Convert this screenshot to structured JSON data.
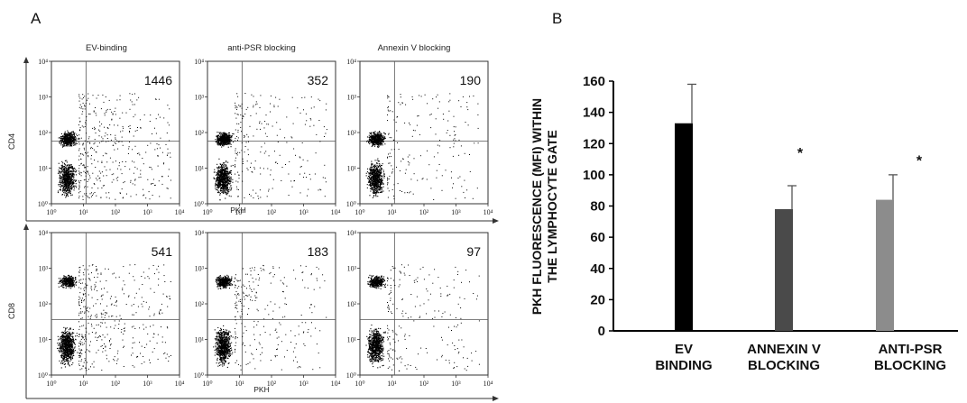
{
  "panel_a": {
    "letter": "A",
    "columns": [
      "EV-binding",
      "anti-PSR blocking",
      "Annexin V blocking"
    ],
    "rows": [
      {
        "label": "CD4",
        "counts": [
          "1446",
          "352",
          "190"
        ]
      },
      {
        "label": "CD8",
        "counts": [
          "541",
          "183",
          "97"
        ]
      }
    ],
    "x_axis_label": "PKH",
    "tick_labels": [
      "10⁰",
      "10¹",
      "10²",
      "10³",
      "10⁴"
    ]
  },
  "panel_b": {
    "letter": "B"
  },
  "chart_data": [
    {
      "type": "scatter",
      "panel": "A",
      "description_of_marks": "flow cytometry dot plots, 2 rows x 3 columns",
      "xlabel": "PKH",
      "x_scale": "log",
      "xlim": [
        1,
        10000
      ],
      "ylim": [
        1,
        10000
      ],
      "rows": [
        {
          "ylabel": "CD4",
          "counts": [
            1446,
            352,
            190
          ]
        },
        {
          "ylabel": "CD8",
          "counts": [
            541,
            183,
            97
          ]
        }
      ],
      "columns": [
        "EV-binding",
        "anti-PSR blocking",
        "Annexin V blocking"
      ]
    },
    {
      "type": "bar",
      "panel": "B",
      "categories": [
        [
          "EV",
          "BINDING"
        ],
        [
          "ANNEXIN V",
          "BLOCKING"
        ],
        [
          "ANTI-PSR",
          "BLOCKING"
        ]
      ],
      "values": [
        133,
        78,
        84
      ],
      "errors": [
        25,
        15,
        16
      ],
      "colors": [
        "#000000",
        "#4a4a4a",
        "#8c8c8c"
      ],
      "significance": [
        "",
        "*",
        "*"
      ],
      "ylabel": [
        "PKH FLUORESCENCE (MFI) WITHIN",
        "THE LYMPHOCYTE GATE"
      ],
      "ylim": [
        0,
        160
      ],
      "yticks": [
        0,
        20,
        40,
        60,
        80,
        100,
        120,
        140,
        160
      ]
    }
  ]
}
